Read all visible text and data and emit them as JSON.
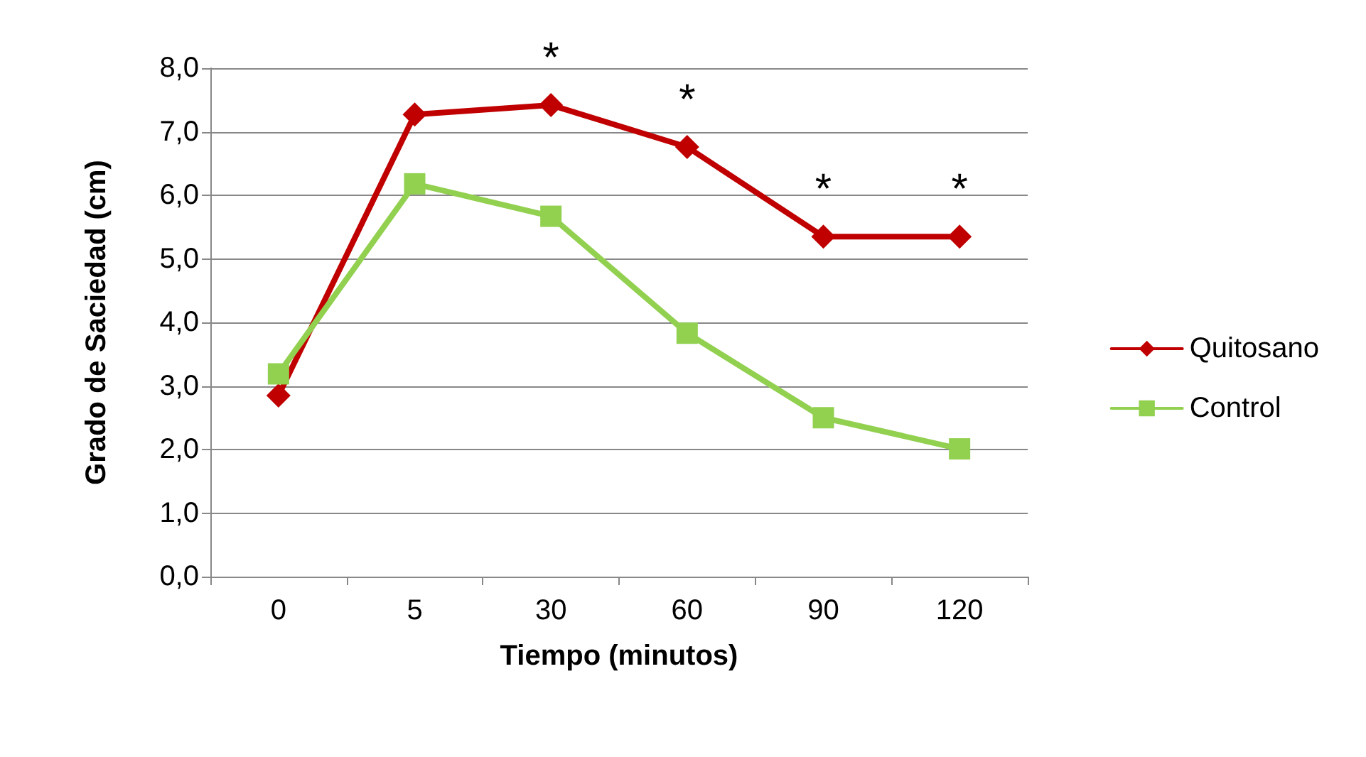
{
  "chart_data": {
    "type": "line",
    "xlabel": "Tiempo (minutos)",
    "ylabel": "Grado de Saciedad (cm)",
    "categories": [
      "0",
      "5",
      "30",
      "60",
      "90",
      "120"
    ],
    "series": [
      {
        "name": "Quitosano",
        "color": "#c00000",
        "marker": "diamond",
        "values": [
          2.85,
          7.27,
          7.42,
          6.76,
          5.35,
          5.35
        ]
      },
      {
        "name": "Control",
        "color": "#92d050",
        "marker": "square",
        "values": [
          3.19,
          6.18,
          5.67,
          3.83,
          2.5,
          2.01
        ]
      }
    ],
    "ylim": [
      0,
      8
    ],
    "yticks": [
      {
        "value": 0,
        "label": "0,0"
      },
      {
        "value": 1,
        "label": "1,0"
      },
      {
        "value": 2,
        "label": "2,0"
      },
      {
        "value": 3,
        "label": "3,0"
      },
      {
        "value": 4,
        "label": "4,0"
      },
      {
        "value": 5,
        "label": "5,0"
      },
      {
        "value": 6,
        "label": "6,0"
      },
      {
        "value": 7,
        "label": "7,0"
      },
      {
        "value": 8,
        "label": "8,0"
      }
    ],
    "annotations": [
      {
        "text": "*",
        "x": "30",
        "y": 7.42
      },
      {
        "text": "*",
        "x": "60",
        "y": 6.76
      },
      {
        "text": "*",
        "x": "90",
        "y": 5.35
      },
      {
        "text": "*",
        "x": "120",
        "y": 5.35
      }
    ],
    "grid": "y",
    "legend": "right",
    "line_style": "solid"
  }
}
